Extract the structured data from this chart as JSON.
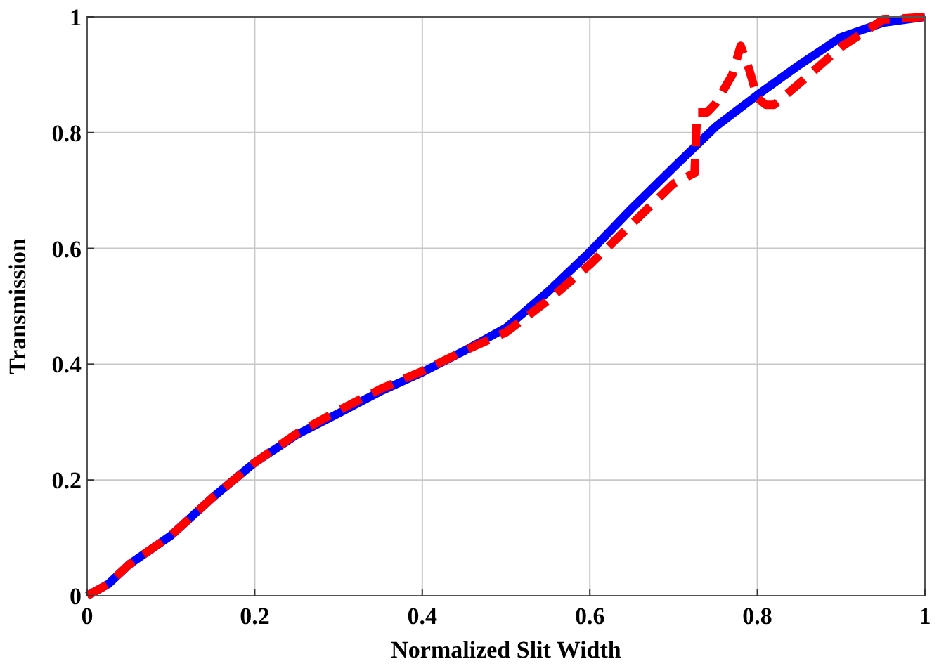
{
  "chart_data": {
    "type": "line",
    "xlabel": "Normalized Slit Width",
    "ylabel": "Transmission",
    "xlim": [
      0,
      1
    ],
    "ylim": [
      0,
      1
    ],
    "xticks": [
      0,
      0.2,
      0.4,
      0.6,
      0.8,
      1
    ],
    "yticks": [
      0,
      0.2,
      0.4,
      0.6,
      0.8,
      1
    ],
    "grid": true,
    "series": [
      {
        "color": "#0000ff",
        "line_style": "solid",
        "x": [
          0,
          0.025,
          0.05,
          0.1,
          0.15,
          0.2,
          0.25,
          0.3,
          0.35,
          0.4,
          0.45,
          0.5,
          0.55,
          0.6,
          0.65,
          0.7,
          0.75,
          0.8,
          0.85,
          0.9,
          0.95,
          1
        ],
        "values": [
          0,
          0.02,
          0.054,
          0.104,
          0.17,
          0.23,
          0.278,
          0.315,
          0.353,
          0.386,
          0.423,
          0.463,
          0.525,
          0.594,
          0.669,
          0.74,
          0.81,
          0.865,
          0.917,
          0.965,
          0.99,
          1
        ]
      },
      {
        "color": "#ff0000",
        "line_style": "dashed",
        "x": [
          0,
          0.025,
          0.05,
          0.1,
          0.15,
          0.2,
          0.25,
          0.3,
          0.35,
          0.4,
          0.45,
          0.5,
          0.55,
          0.6,
          0.65,
          0.7,
          0.725,
          0.728,
          0.74,
          0.75,
          0.77,
          0.78,
          0.79,
          0.8,
          0.81,
          0.82,
          0.85,
          0.9,
          0.95,
          1
        ],
        "values": [
          0,
          0.02,
          0.054,
          0.104,
          0.17,
          0.23,
          0.28,
          0.32,
          0.357,
          0.388,
          0.423,
          0.455,
          0.51,
          0.572,
          0.642,
          0.712,
          0.73,
          0.835,
          0.835,
          0.85,
          0.9,
          0.95,
          0.91,
          0.86,
          0.848,
          0.848,
          0.885,
          0.948,
          0.995,
          1
        ]
      }
    ]
  }
}
